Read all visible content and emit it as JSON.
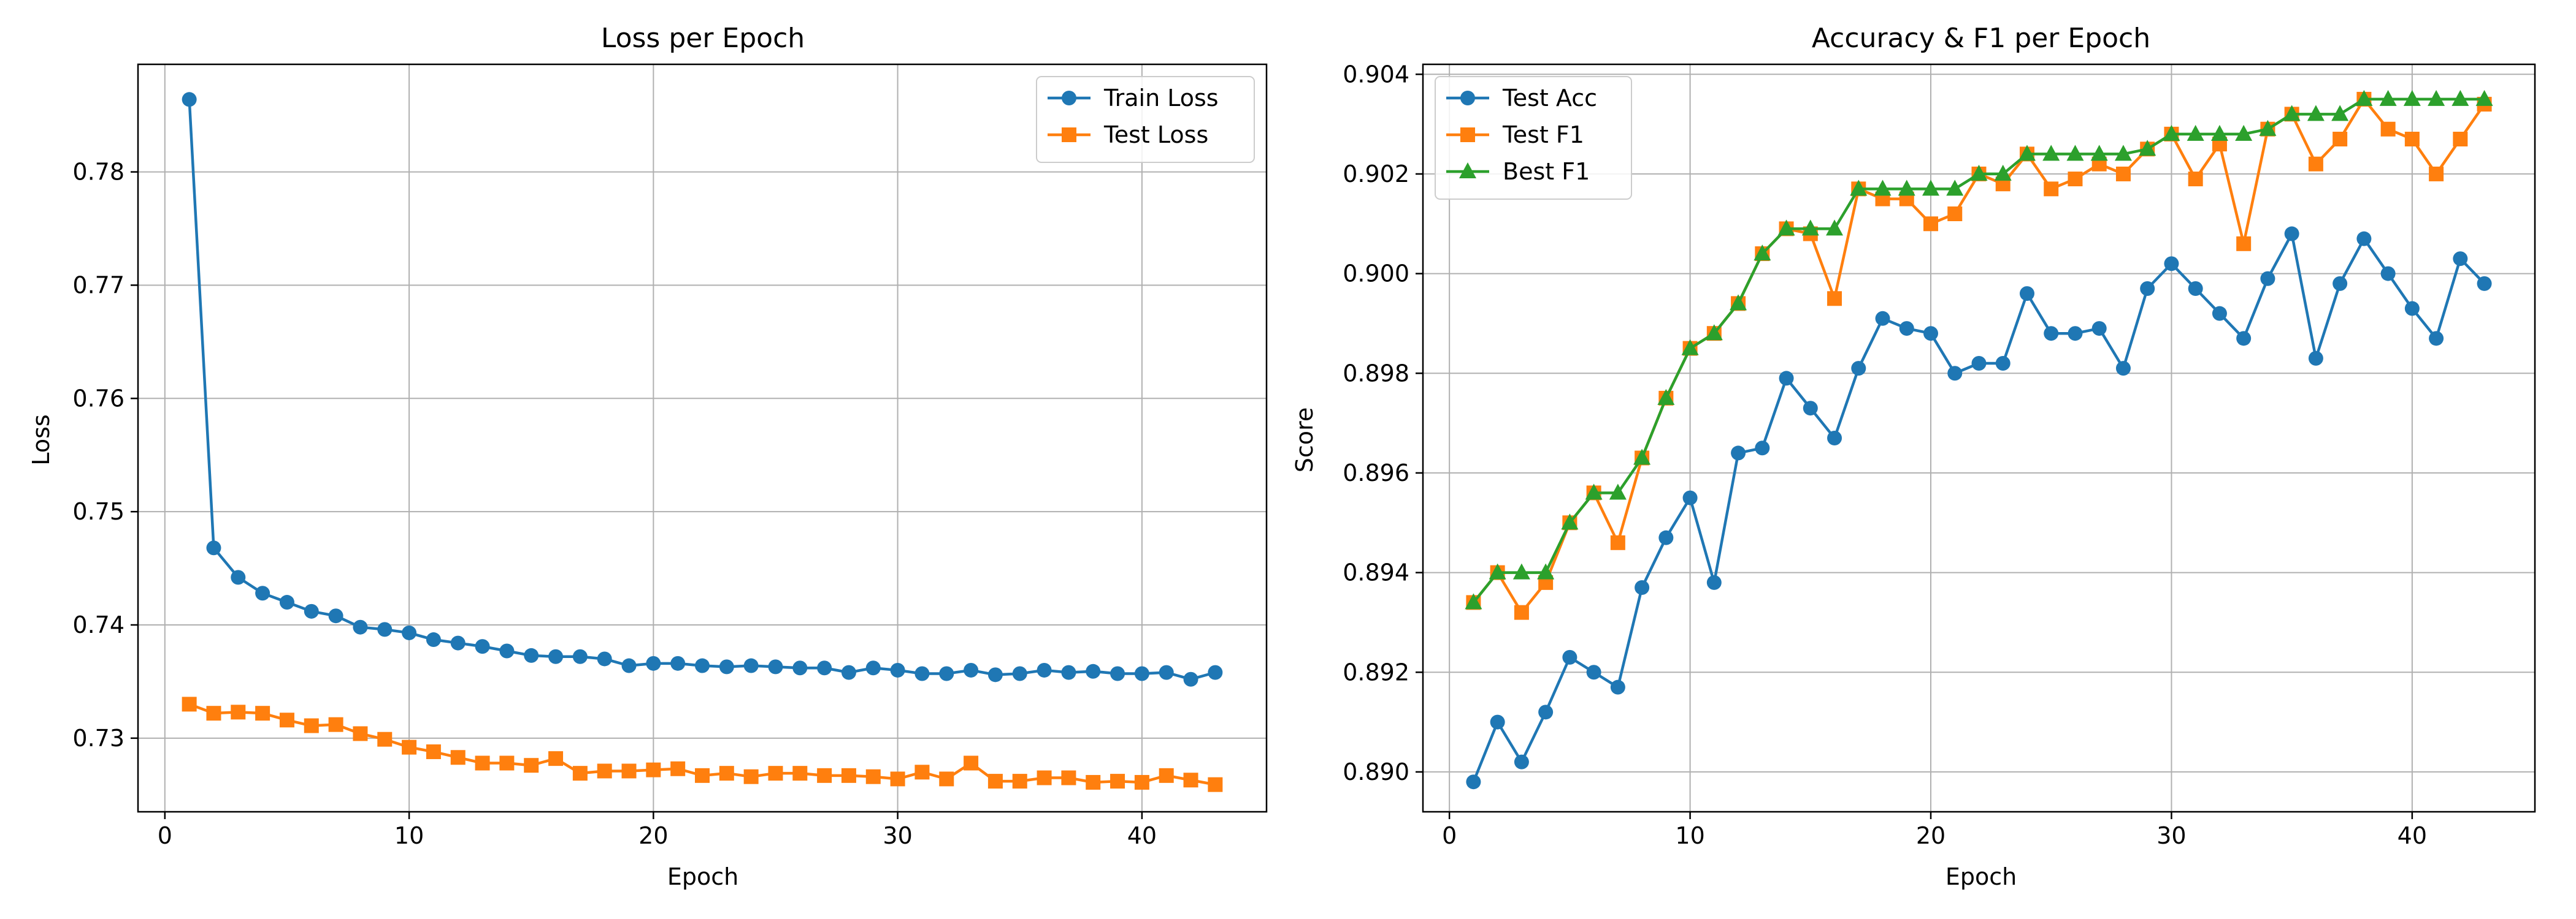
{
  "chart_data": [
    {
      "type": "line",
      "title": "Loss per Epoch",
      "xlabel": "Epoch",
      "ylabel": "Loss",
      "xlim": [
        -1.1,
        45.1
      ],
      "ylim": [
        0.7235,
        0.7895
      ],
      "xticks": [
        0,
        10,
        20,
        30,
        40
      ],
      "yticks": [
        0.73,
        0.74,
        0.75,
        0.76,
        0.77,
        0.78
      ],
      "grid": true,
      "legend_position": "top-right",
      "x": [
        1,
        2,
        3,
        4,
        5,
        6,
        7,
        8,
        9,
        10,
        11,
        12,
        13,
        14,
        15,
        16,
        17,
        18,
        19,
        20,
        21,
        22,
        23,
        24,
        25,
        26,
        27,
        28,
        29,
        30,
        31,
        32,
        33,
        34,
        35,
        36,
        37,
        38,
        39,
        40,
        41,
        42,
        43
      ],
      "series": [
        {
          "name": "Train Loss",
          "color": "#1f77b4",
          "marker": "circle",
          "values": [
            0.7864,
            0.7468,
            0.7442,
            0.7428,
            0.742,
            0.7412,
            0.7408,
            0.7398,
            0.7396,
            0.7393,
            0.7387,
            0.7384,
            0.7381,
            0.7377,
            0.7373,
            0.7372,
            0.7372,
            0.737,
            0.7364,
            0.7366,
            0.7366,
            0.7364,
            0.7363,
            0.7364,
            0.7363,
            0.7362,
            0.7362,
            0.7358,
            0.7362,
            0.736,
            0.7357,
            0.7357,
            0.736,
            0.7356,
            0.7357,
            0.736,
            0.7358,
            0.7359,
            0.7357,
            0.7357,
            0.7358,
            0.7352,
            0.7358
          ]
        },
        {
          "name": "Test Loss",
          "color": "#ff7f0e",
          "marker": "square",
          "values": [
            0.733,
            0.7322,
            0.7323,
            0.7322,
            0.7316,
            0.7311,
            0.7312,
            0.7304,
            0.7299,
            0.7292,
            0.7288,
            0.7283,
            0.7278,
            0.7278,
            0.7276,
            0.7282,
            0.7269,
            0.7271,
            0.7271,
            0.7272,
            0.7273,
            0.7267,
            0.7269,
            0.7266,
            0.7269,
            0.7269,
            0.7267,
            0.7267,
            0.7266,
            0.7264,
            0.727,
            0.7264,
            0.7278,
            0.7262,
            0.7262,
            0.7265,
            0.7265,
            0.7261,
            0.7262,
            0.7261,
            0.7267,
            0.7263,
            0.7259
          ]
        }
      ]
    },
    {
      "type": "line",
      "title": "Accuracy & F1 per Epoch",
      "xlabel": "Epoch",
      "ylabel": "Score",
      "xlim": [
        -1.1,
        45.1
      ],
      "ylim": [
        0.8892,
        0.9042
      ],
      "xticks": [
        0,
        10,
        20,
        30,
        40
      ],
      "yticks": [
        0.89,
        0.892,
        0.894,
        0.896,
        0.898,
        0.9,
        0.902,
        0.904
      ],
      "grid": true,
      "legend_position": "top-left",
      "x": [
        1,
        2,
        3,
        4,
        5,
        6,
        7,
        8,
        9,
        10,
        11,
        12,
        13,
        14,
        15,
        16,
        17,
        18,
        19,
        20,
        21,
        22,
        23,
        24,
        25,
        26,
        27,
        28,
        29,
        30,
        31,
        32,
        33,
        34,
        35,
        36,
        37,
        38,
        39,
        40,
        41,
        42,
        43
      ],
      "series": [
        {
          "name": "Test Acc",
          "color": "#1f77b4",
          "marker": "circle",
          "values": [
            0.8898,
            0.891,
            0.8902,
            0.8912,
            0.8923,
            0.892,
            0.8917,
            0.8937,
            0.8947,
            0.8955,
            0.8938,
            0.8964,
            0.8965,
            0.8979,
            0.8973,
            0.8967,
            0.8981,
            0.8991,
            0.8989,
            0.8988,
            0.898,
            0.8982,
            0.8982,
            0.8996,
            0.8988,
            0.8988,
            0.8989,
            0.8981,
            0.8997,
            0.9002,
            0.8997,
            0.8992,
            0.8987,
            0.8999,
            0.9008,
            0.8983,
            0.8998,
            0.9007,
            0.9,
            0.8993,
            0.8987,
            0.9003,
            0.8998
          ]
        },
        {
          "name": "Test F1",
          "color": "#ff7f0e",
          "marker": "square",
          "values": [
            0.8934,
            0.894,
            0.8932,
            0.8938,
            0.895,
            0.8956,
            0.8946,
            0.8963,
            0.8975,
            0.8985,
            0.8988,
            0.8994,
            0.9004,
            0.9009,
            0.9008,
            0.8995,
            0.9017,
            0.9015,
            0.9015,
            0.901,
            0.9012,
            0.902,
            0.9018,
            0.9024,
            0.9017,
            0.9019,
            0.9022,
            0.902,
            0.9025,
            0.9028,
            0.9019,
            0.9026,
            0.9006,
            0.9029,
            0.9032,
            0.9022,
            0.9027,
            0.9035,
            0.9029,
            0.9027,
            0.902,
            0.9027,
            0.9034
          ]
        },
        {
          "name": "Best F1",
          "color": "#2ca02c",
          "marker": "triangle",
          "values": [
            0.8934,
            0.894,
            0.894,
            0.894,
            0.895,
            0.8956,
            0.8956,
            0.8963,
            0.8975,
            0.8985,
            0.8988,
            0.8994,
            0.9004,
            0.9009,
            0.9009,
            0.9009,
            0.9017,
            0.9017,
            0.9017,
            0.9017,
            0.9017,
            0.902,
            0.902,
            0.9024,
            0.9024,
            0.9024,
            0.9024,
            0.9024,
            0.9025,
            0.9028,
            0.9028,
            0.9028,
            0.9028,
            0.9029,
            0.9032,
            0.9032,
            0.9032,
            0.9035,
            0.9035,
            0.9035,
            0.9035,
            0.9035,
            0.9035
          ]
        }
      ]
    }
  ]
}
